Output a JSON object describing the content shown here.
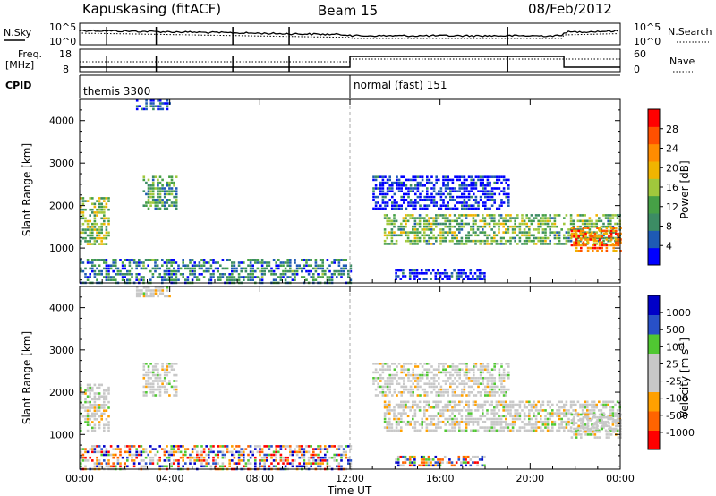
{
  "header": {
    "station": "Kapuskasing (fitACF)",
    "beam": "Beam 15",
    "date": "08/Feb/2012"
  },
  "aux_labels": {
    "nsky": "N.Sky",
    "nsearch": "N.Search",
    "freq_line1": "Freq.",
    "freq_line2": "[MHz]",
    "nave": "Nave",
    "cpid": "CPID"
  },
  "noise_panel": {
    "left_ticks": [
      "10^5",
      "10^0"
    ],
    "right_ticks": [
      "10^5",
      "10^0"
    ]
  },
  "freq_panel": {
    "left_ticks": [
      "18",
      "8"
    ],
    "right_ticks": [
      "60",
      "0"
    ]
  },
  "cpid_segments": [
    {
      "label": "themis 3300",
      "start_h": 0
    },
    {
      "label": "normal (fast) 151",
      "start_h": 12
    }
  ],
  "colors": {
    "power": [
      "#0000ff",
      "#1e5ab4",
      "#3c8c64",
      "#46a046",
      "#a0c83c",
      "#f0b400",
      "#ff8c00",
      "#ff5000",
      "#ff0000"
    ],
    "velocity": [
      "#ff0000",
      "#ff6400",
      "#ffa000",
      "#c8c8c8",
      "#c8c8c8",
      "#50c832",
      "#2850c8",
      "#0000c8"
    ]
  },
  "chart_data": [
    {
      "type": "heatmap",
      "name": "power",
      "xlabel": "",
      "ylabel": "Slant Range [km]",
      "x_range_h": [
        0,
        24
      ],
      "ylim_km": [
        180,
        4500
      ],
      "y_ticks": [
        "1000",
        "2000",
        "3000",
        "4000"
      ],
      "colorbar": {
        "label": "Power [dB]",
        "ticks": [
          "4",
          "8",
          "12",
          "16",
          "20",
          "24",
          "28"
        ],
        "range": [
          0,
          30
        ]
      },
      "echo_regions": [
        {
          "t": [
            0.0,
            1.3
          ],
          "r": [
            1100,
            2200
          ],
          "level": 0.45
        },
        {
          "t": [
            2.8,
            4.3
          ],
          "r": [
            1900,
            2700
          ],
          "level": 0.35
        },
        {
          "t": [
            2.5,
            4.0
          ],
          "r": [
            4250,
            4500
          ],
          "level": 0.1
        },
        {
          "t": [
            0.0,
            12.0
          ],
          "r": [
            200,
            750
          ],
          "level": 0.25
        },
        {
          "t": [
            13.5,
            24.0
          ],
          "r": [
            1100,
            1800
          ],
          "level": 0.4
        },
        {
          "t": [
            21.8,
            24.0
          ],
          "r": [
            900,
            1500
          ],
          "level": 0.75
        },
        {
          "t": [
            13.0,
            19.0
          ],
          "r": [
            1900,
            2700
          ],
          "level": 0.05
        },
        {
          "t": [
            14.0,
            18.0
          ],
          "r": [
            250,
            500
          ],
          "level": 0.05
        }
      ]
    },
    {
      "type": "heatmap",
      "name": "velocity",
      "xlabel": "Time UT",
      "ylabel": "Slant Range [km]",
      "x_range_h": [
        0,
        24
      ],
      "ylim_km": [
        180,
        4500
      ],
      "x_ticks": [
        "00:00",
        "04:00",
        "08:00",
        "12:00",
        "16:00",
        "20:00",
        "00:00"
      ],
      "y_ticks": [
        "1000",
        "2000",
        "3000",
        "4000"
      ],
      "colorbar": {
        "label": "Velocity [m s^-1]",
        "ticks": [
          "-1000",
          "-500",
          "-100",
          "-25",
          "25",
          "100",
          "500",
          "1000"
        ],
        "range": [
          -1200,
          1200
        ]
      },
      "echo_regions": [
        {
          "t": [
            0.0,
            1.3
          ],
          "r": [
            1100,
            2200
          ],
          "level": 0.45
        },
        {
          "t": [
            2.8,
            4.3
          ],
          "r": [
            1900,
            2700
          ],
          "level": 0.5
        },
        {
          "t": [
            2.5,
            4.0
          ],
          "r": [
            4250,
            4500
          ],
          "level": 0.5
        },
        {
          "t": [
            0.0,
            12.0
          ],
          "r": [
            200,
            750
          ],
          "level": 0.45
        },
        {
          "t": [
            13.5,
            24.0
          ],
          "r": [
            1100,
            1800
          ],
          "level": 0.5
        },
        {
          "t": [
            21.8,
            24.0
          ],
          "r": [
            900,
            1500
          ],
          "level": 0.5
        },
        {
          "t": [
            13.0,
            19.0
          ],
          "r": [
            1900,
            2700
          ],
          "level": 0.5
        },
        {
          "t": [
            14.0,
            18.0
          ],
          "r": [
            250,
            500
          ],
          "level": 0.35
        }
      ]
    }
  ]
}
